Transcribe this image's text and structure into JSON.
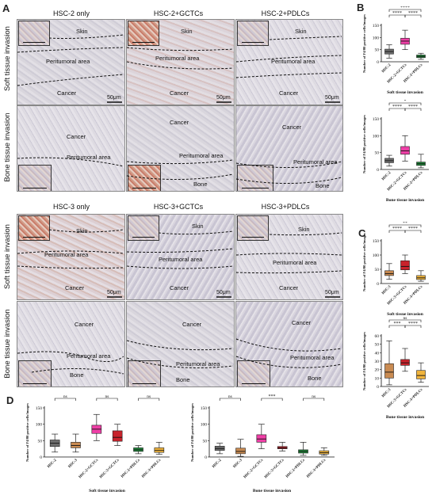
{
  "panels": {
    "A": "A",
    "B": "B",
    "C": "C",
    "D": "D"
  },
  "columns_top": [
    "HSC-2 only",
    "HSC-2+GCTCs",
    "HSC-2+PDLCs"
  ],
  "columns_bottom": [
    "HSC-3 only",
    "HSC-3+GCTCs",
    "HSC-3+PDLCs"
  ],
  "row_labels": [
    "Soft tissue invasion",
    "Bone tissue invasion"
  ],
  "scale_bar": "50μm",
  "tissue": {
    "skin": "Skin",
    "peri": "Peritumoral area",
    "cancer": "Cancer",
    "bone": "Bone"
  },
  "chart_ylabel": "Number of F4/80 positive cells/images",
  "colors": {
    "gray": "#6f6f6f",
    "pink": "#ee3fa6",
    "green": "#1f8a3a",
    "tan": "#c98b52",
    "red": "#c8232c",
    "yellow": "#f0b43c"
  },
  "chart_data": [
    {
      "id": "B-soft",
      "type": "box",
      "categories": [
        "HSC-2",
        "HSC-2+GCTCs",
        "HSC-2+PDLCs"
      ],
      "ylim": [
        0,
        150
      ],
      "yticks": [
        0,
        50,
        100,
        150
      ],
      "xlabel": "Soft tissue invasion",
      "boxes": [
        {
          "min": 15,
          "q1": 32,
          "median": 42,
          "q3": 52,
          "max": 70
        },
        {
          "min": 50,
          "q1": 72,
          "median": 85,
          "q3": 97,
          "max": 130
        },
        {
          "min": 10,
          "q1": 17,
          "median": 22,
          "q3": 28,
          "max": 35
        }
      ],
      "sig": [
        {
          "from": 0,
          "to": 2,
          "label": "****"
        },
        {
          "from": 0,
          "to": 1,
          "label": "****"
        },
        {
          "from": 1,
          "to": 2,
          "label": "****"
        }
      ]
    },
    {
      "id": "B-bone",
      "type": "box",
      "categories": [
        "HSC-2",
        "HSC-2+GCTCs",
        "HSC-2+PDLCs"
      ],
      "ylim": [
        0,
        150
      ],
      "yticks": [
        0,
        50,
        100,
        150
      ],
      "xlabel": "Bone tissue invasion",
      "boxes": [
        {
          "min": 10,
          "q1": 20,
          "median": 26,
          "q3": 33,
          "max": 42
        },
        {
          "min": 25,
          "q1": 45,
          "median": 55,
          "q3": 68,
          "max": 100
        },
        {
          "min": 5,
          "q1": 12,
          "median": 17,
          "q3": 22,
          "max": 45
        }
      ],
      "sig": [
        {
          "from": 0,
          "to": 2,
          "label": "*"
        },
        {
          "from": 0,
          "to": 1,
          "label": "****"
        },
        {
          "from": 1,
          "to": 2,
          "label": "****"
        }
      ]
    },
    {
      "id": "C-soft",
      "type": "box",
      "categories": [
        "HSC-3",
        "HSC-3+GCTCs",
        "HSC-3+PDLCs"
      ],
      "ylim": [
        0,
        150
      ],
      "yticks": [
        0,
        50,
        100,
        150
      ],
      "xlabel": "Soft tissue invasion",
      "boxes": [
        {
          "min": 15,
          "q1": 28,
          "median": 35,
          "q3": 45,
          "max": 70
        },
        {
          "min": 35,
          "q1": 48,
          "median": 60,
          "q3": 80,
          "max": 100
        },
        {
          "min": 8,
          "q1": 14,
          "median": 20,
          "q3": 28,
          "max": 45
        }
      ],
      "sig": [
        {
          "from": 0,
          "to": 2,
          "label": "**"
        },
        {
          "from": 0,
          "to": 1,
          "label": "****"
        },
        {
          "from": 1,
          "to": 2,
          "label": "****"
        }
      ]
    },
    {
      "id": "C-bone",
      "type": "box",
      "categories": [
        "HSC-3",
        "HSC-3+GCTCs",
        "HSC-3+PDLCs"
      ],
      "ylim": [
        0,
        60
      ],
      "yticks": [
        0,
        10,
        20,
        30,
        40,
        50,
        60
      ],
      "xlabel": "Bone tissue invasion",
      "boxes": [
        {
          "min": 2,
          "q1": 10,
          "median": 17,
          "q3": 27,
          "max": 54
        },
        {
          "min": 18,
          "q1": 25,
          "median": 28,
          "q3": 32,
          "max": 45
        },
        {
          "min": 5,
          "q1": 9,
          "median": 13,
          "q3": 19,
          "max": 28
        }
      ],
      "sig": [
        {
          "from": 0,
          "to": 2,
          "label": "ns"
        },
        {
          "from": 0,
          "to": 1,
          "label": "***"
        },
        {
          "from": 1,
          "to": 2,
          "label": "****"
        }
      ]
    },
    {
      "id": "D-soft",
      "type": "box",
      "categories": [
        "HSC-2",
        "HSC-3",
        "HSC-2+GCTCs",
        "HSC-3+GCTCs",
        "HSC-2+PDLCs",
        "HSC-3+PDLCs"
      ],
      "ylim": [
        0,
        150
      ],
      "yticks": [
        0,
        50,
        100,
        150
      ],
      "xlabel": "Soft tissue invasion",
      "boxes": [
        {
          "min": 15,
          "q1": 32,
          "median": 42,
          "q3": 52,
          "max": 70
        },
        {
          "min": 15,
          "q1": 28,
          "median": 35,
          "q3": 45,
          "max": 70
        },
        {
          "min": 50,
          "q1": 72,
          "median": 85,
          "q3": 97,
          "max": 130
        },
        {
          "min": 35,
          "q1": 48,
          "median": 60,
          "q3": 80,
          "max": 100
        },
        {
          "min": 10,
          "q1": 17,
          "median": 22,
          "q3": 28,
          "max": 35
        },
        {
          "min": 8,
          "q1": 14,
          "median": 20,
          "q3": 28,
          "max": 45
        }
      ],
      "sig": [
        {
          "from": 0,
          "to": 1,
          "label": "ns"
        },
        {
          "from": 2,
          "to": 3,
          "label": "ns"
        },
        {
          "from": 4,
          "to": 5,
          "label": "ns"
        }
      ]
    },
    {
      "id": "D-bone",
      "type": "box",
      "categories": [
        "HSC-2",
        "HSC-3",
        "HSC-2+GCTCs",
        "HSC-3+GCTCs",
        "HSC-2+PDLCs",
        "HSC-3+PDLCs"
      ],
      "ylim": [
        0,
        150
      ],
      "yticks": [
        0,
        50,
        100,
        150
      ],
      "xlabel": "Bone tissue invasion",
      "boxes": [
        {
          "min": 10,
          "q1": 20,
          "median": 26,
          "q3": 33,
          "max": 42
        },
        {
          "min": 2,
          "q1": 10,
          "median": 17,
          "q3": 27,
          "max": 54
        },
        {
          "min": 25,
          "q1": 45,
          "median": 55,
          "q3": 68,
          "max": 100
        },
        {
          "min": 18,
          "q1": 25,
          "median": 28,
          "q3": 32,
          "max": 45
        },
        {
          "min": 5,
          "q1": 12,
          "median": 17,
          "q3": 22,
          "max": 45
        },
        {
          "min": 5,
          "q1": 9,
          "median": 13,
          "q3": 19,
          "max": 28
        }
      ],
      "sig": [
        {
          "from": 0,
          "to": 1,
          "label": "ns"
        },
        {
          "from": 2,
          "to": 3,
          "label": "***"
        },
        {
          "from": 4,
          "to": 5,
          "label": "ns"
        }
      ]
    }
  ]
}
